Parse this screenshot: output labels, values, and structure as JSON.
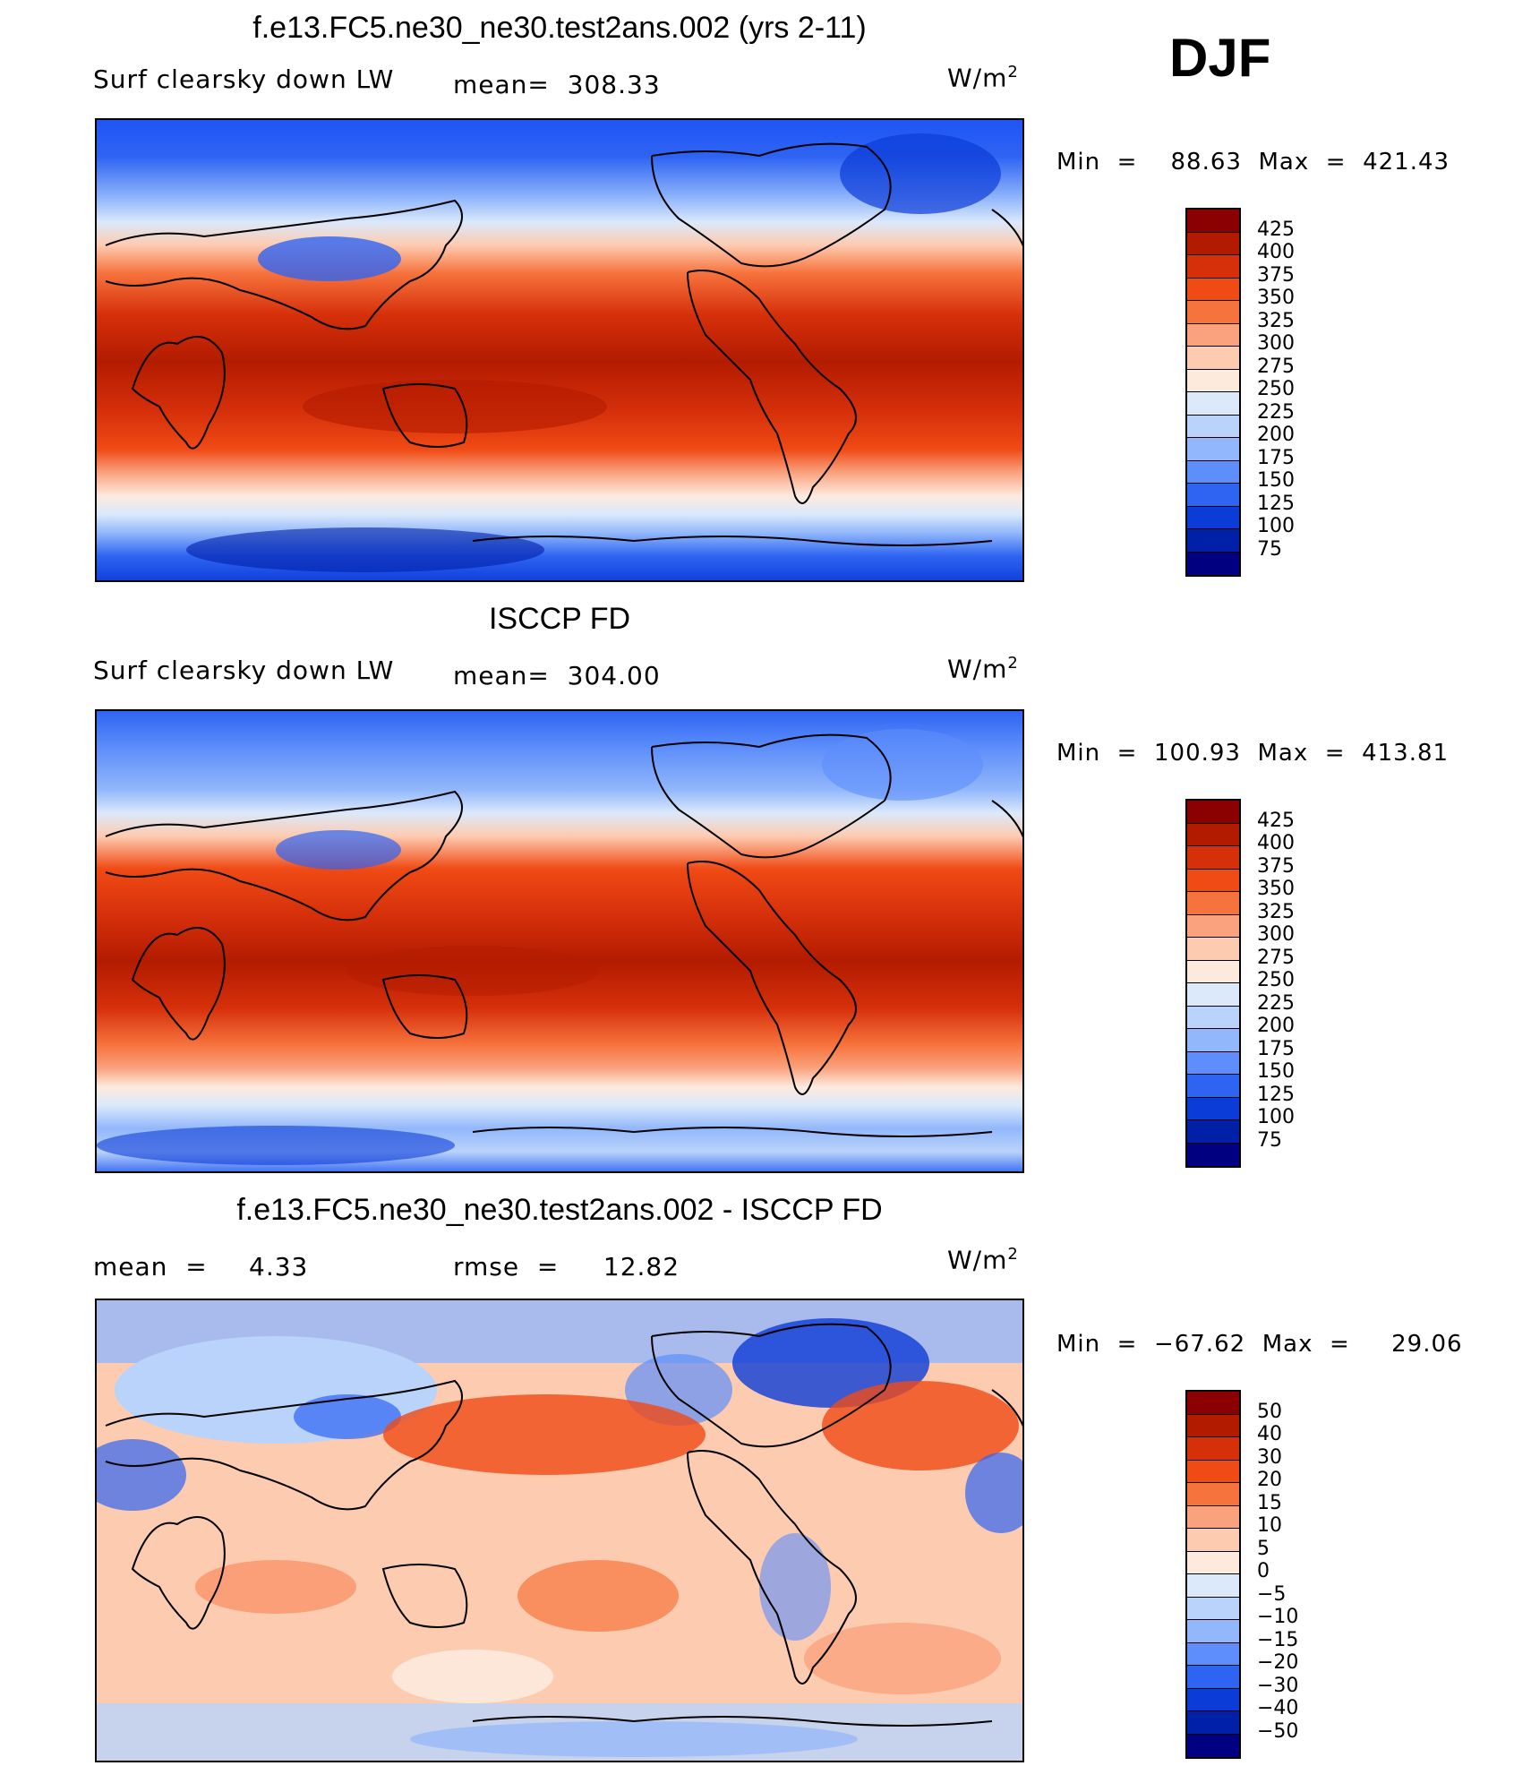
{
  "season": "DJF",
  "panels": [
    {
      "title": "f.e13.FC5.ne30_ne30.test2ans.002 (yrs 2-11)",
      "variable": "Surf clearsky down LW",
      "stat1": "mean=  308.33",
      "stat2": "",
      "units": "W/m",
      "units_sup": "2",
      "minmax": "Min  =    88.63  Max  =  421.43",
      "colorbar_labels": [
        "425",
        "400",
        "375",
        "350",
        "325",
        "300",
        "275",
        "250",
        "225",
        "200",
        "175",
        "150",
        "125",
        "100",
        "75"
      ]
    },
    {
      "title": "ISCCP FD",
      "variable": "Surf clearsky down LW",
      "stat1": "mean=  304.00",
      "stat2": "",
      "units": "W/m",
      "units_sup": "2",
      "minmax": "Min  =  100.93  Max  =  413.81",
      "colorbar_labels": [
        "425",
        "400",
        "375",
        "350",
        "325",
        "300",
        "275",
        "250",
        "225",
        "200",
        "175",
        "150",
        "125",
        "100",
        "75"
      ]
    },
    {
      "title": "f.e13.FC5.ne30_ne30.test2ans.002 - ISCCP FD",
      "variable": "mean  =",
      "stat1": "4.33",
      "stat2": "rmse  =     12.82",
      "units": "W/m",
      "units_sup": "2",
      "minmax": "Min  =  −67.62  Max  =     29.06",
      "colorbar_labels": [
        "50",
        "40",
        "30",
        "20",
        "15",
        "10",
        "5",
        "0",
        "−5",
        "−10",
        "−15",
        "−20",
        "−30",
        "−40",
        "−50"
      ]
    }
  ],
  "colorbar_colors": [
    "#8b0000",
    "#b31b00",
    "#d6300b",
    "#f04a15",
    "#f7733d",
    "#faa27e",
    "#fdcbb0",
    "#fdeadd",
    "#dbe9fb",
    "#b9d3fb",
    "#92b7fb",
    "#5d8efb",
    "#2f64f2",
    "#0c3cd8",
    "#0020a8",
    "#000080"
  ],
  "colors": {
    "background": "#ffffff",
    "coast": "#000000"
  }
}
